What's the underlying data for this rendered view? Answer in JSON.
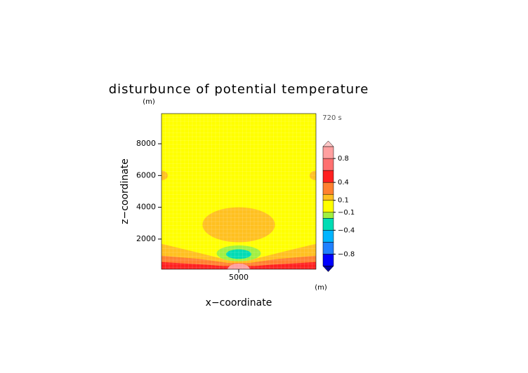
{
  "chart_data": {
    "type": "contour",
    "title": "disturbunce of potential temperature",
    "time_label": "720 s",
    "x_label": "x−coordinate",
    "y_label": "z−coordinate",
    "x_unit": "(m)",
    "y_unit": "(m)",
    "xlim": [
      100,
      9900
    ],
    "ylim": [
      100,
      9900
    ],
    "xticks": [
      5000
    ],
    "yticks": [
      2000,
      4000,
      6000,
      8000
    ],
    "background": {
      "value": 0,
      "color": "#ffff00"
    },
    "regions": [
      {
        "value": 0.15,
        "color": "#ffc020",
        "shape": "polygon",
        "points": [
          [
            100,
            100
          ],
          [
            100,
            1700
          ],
          [
            2000,
            1250
          ],
          [
            4000,
            750
          ],
          [
            6000,
            750
          ],
          [
            8000,
            1250
          ],
          [
            9900,
            1700
          ],
          [
            9900,
            100
          ]
        ]
      },
      {
        "value": 0.15,
        "color": "#ffc020",
        "shape": "ellipse",
        "center": [
          5000,
          2900
        ],
        "radii": [
          2300,
          1100
        ]
      },
      {
        "value": 0.15,
        "color": "#ffc020",
        "shape": "ellipse",
        "center": [
          100,
          6000
        ],
        "radii": [
          400,
          300
        ]
      },
      {
        "value": 0.15,
        "color": "#ffc020",
        "shape": "ellipse",
        "center": [
          9900,
          6000
        ],
        "radii": [
          400,
          300
        ]
      },
      {
        "value": 0.3,
        "color": "#ff8030",
        "shape": "polygon",
        "points": [
          [
            100,
            100
          ],
          [
            100,
            950
          ],
          [
            2500,
            750
          ],
          [
            4300,
            500
          ],
          [
            5700,
            500
          ],
          [
            7500,
            750
          ],
          [
            9900,
            950
          ],
          [
            9900,
            100
          ]
        ]
      },
      {
        "value": 0.5,
        "color": "#ff2020",
        "shape": "polygon",
        "points": [
          [
            100,
            100
          ],
          [
            100,
            550
          ],
          [
            3000,
            380
          ],
          [
            4000,
            300
          ],
          [
            6000,
            300
          ],
          [
            7000,
            380
          ],
          [
            9900,
            550
          ],
          [
            9900,
            100
          ]
        ]
      },
      {
        "value": 0.7,
        "color": "#ffa0a0",
        "shape": "ellipse",
        "center": [
          5000,
          100
        ],
        "radii": [
          700,
          350
        ]
      },
      {
        "value": -0.15,
        "color": "#a0f040",
        "shape": "ellipse",
        "center": [
          5000,
          1100
        ],
        "radii": [
          1400,
          500
        ]
      },
      {
        "value": -0.3,
        "color": "#00dcb4",
        "shape": "ellipse",
        "center": [
          5000,
          1050
        ],
        "radii": [
          800,
          300
        ]
      }
    ],
    "colorbar": {
      "lim": [
        -1,
        1
      ],
      "bounds": [
        -1,
        -0.8,
        -0.6,
        -0.4,
        -0.2,
        -0.1,
        0.1,
        0.2,
        0.4,
        0.6,
        0.8,
        1
      ],
      "colors": [
        "#0000ff",
        "#2080ff",
        "#00b4ff",
        "#00dcb4",
        "#a0f040",
        "#ffff00",
        "#ffc020",
        "#ff8030",
        "#ff2020",
        "#ff7070",
        "#ffa0a0"
      ],
      "under_color": "#0000a0",
      "over_color": "#ffc8c8",
      "ticks": [
        0.8,
        0.4,
        0.1,
        {
          "value": -0.1,
          "label": "−0.1"
        },
        {
          "value": -0.4,
          "label": "−0.4"
        },
        {
          "value": -0.8,
          "label": "−0.8"
        }
      ]
    }
  }
}
